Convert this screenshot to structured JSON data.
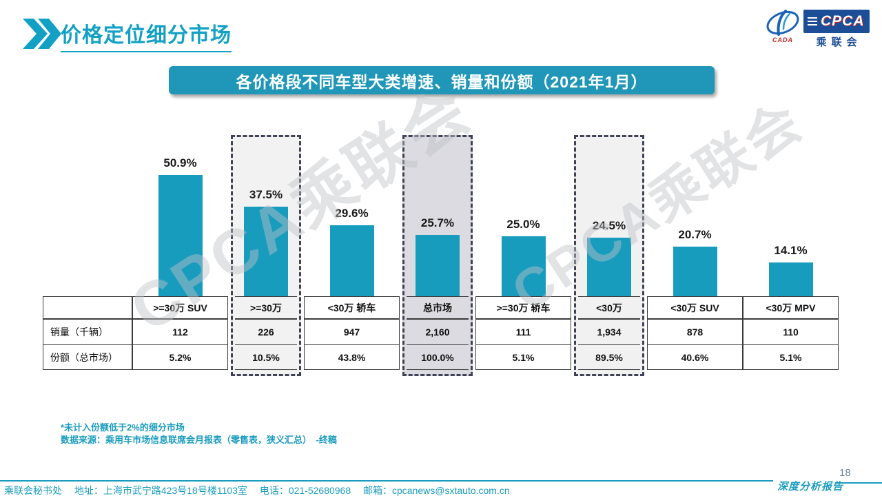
{
  "page": {
    "title": "价格定位细分市场",
    "page_number": "18",
    "report_label": "深度分析报告"
  },
  "logo": {
    "emblem_caption": "CADA",
    "box_text": "CPCA",
    "box_subtext": "乘联会"
  },
  "banner": {
    "text": "各价格段不同车型大类增速、销量和份额（2021年1月）"
  },
  "watermark": {
    "text": "CPCA乘联会"
  },
  "chart_data": {
    "type": "bar",
    "title": "各价格段不同车型大类增速、销量和份额（2021年1月）",
    "categories": [
      ">=30万 SUV",
      ">=30万",
      "<30万 轿车",
      "总市场",
      ">=30万 轿车",
      "<30万",
      "<30万 SUV",
      "<30万 MPV"
    ],
    "series": [
      {
        "name": "增速",
        "unit": "%",
        "values": [
          50.9,
          37.5,
          29.6,
          25.7,
          25.0,
          24.5,
          20.7,
          14.1
        ],
        "labels": [
          "50.9%",
          "37.5%",
          "29.6%",
          "25.7%",
          "25.0%",
          "24.5%",
          "20.7%",
          "14.1%"
        ]
      },
      {
        "name": "销量（千辆）",
        "values_text": [
          "112",
          "226",
          "947",
          "2,160",
          "111",
          "1,934",
          "878",
          "110"
        ]
      },
      {
        "name": "份额（总市场）",
        "values_text": [
          "5.2%",
          "10.5%",
          "43.8%",
          "100.0%",
          "5.1%",
          "89.5%",
          "40.6%",
          "5.1%"
        ]
      }
    ],
    "row_labels": [
      "销量（千辆）",
      "份额（总市场）"
    ],
    "highlighted_columns": [
      1,
      3,
      5
    ],
    "highlight_bg": {
      "1": "#F2F2F3",
      "3": "#DBDBE1",
      "5": "#F1F1F2"
    },
    "bar_color": "#189CBE",
    "dashed_box_color": "#3F4254",
    "ylim": [
      0,
      60
    ],
    "grid": false,
    "legend": "none"
  },
  "footnotes": {
    "line1": "*未计入份额低于2%的细分市场",
    "line2": "数据来源：乘用车市场信息联席会月报表（零售表，狭义汇总）　-终稿"
  },
  "footer": {
    "contact": "乘联会秘书处　 地址：上海市武宁路423号18号楼1103室　 电话：021-52680968　 邮箱：cpcanews@sxtauto.com.cn"
  },
  "colors": {
    "accent": "#189CBE",
    "logo_navy": "#1C4E97",
    "logo_red": "#CC2222"
  }
}
